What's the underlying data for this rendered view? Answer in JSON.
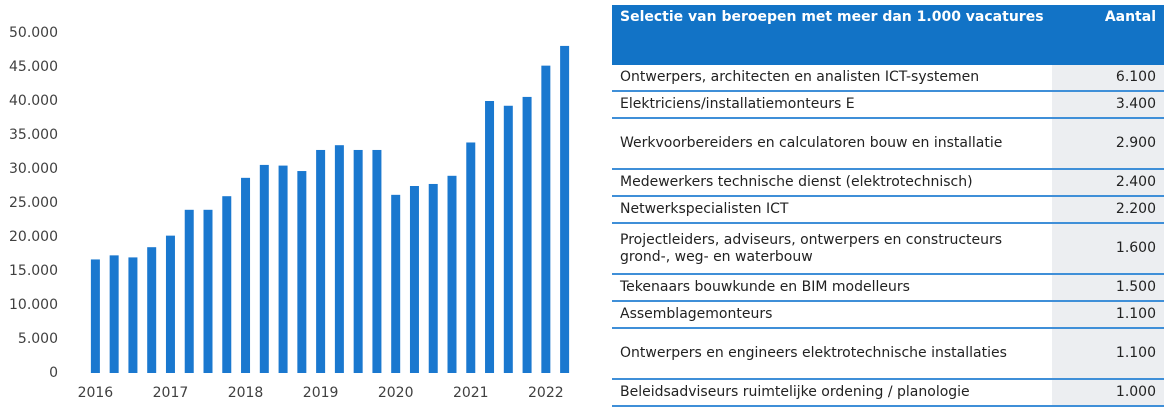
{
  "chart_data": {
    "type": "bar",
    "categories": [
      "2016",
      null,
      null,
      null,
      "2017",
      null,
      null,
      null,
      "2018",
      null,
      null,
      null,
      "2019",
      null,
      null,
      null,
      "2020",
      null,
      null,
      null,
      "2021",
      null,
      null,
      null,
      "2022",
      null
    ],
    "values": [
      16700,
      17300,
      17000,
      18500,
      20200,
      24000,
      24000,
      26000,
      28700,
      30600,
      30500,
      29700,
      32800,
      33500,
      32800,
      32800,
      26200,
      27500,
      27800,
      29000,
      33900,
      40000,
      39300,
      40600,
      45200,
      48100
    ],
    "color": "#1a78cf",
    "ylim": [
      0,
      50000
    ],
    "yticks": [
      0,
      {
        "value": 5000,
        "label": "5.000"
      },
      {
        "value": 10000,
        "label": "10.000"
      },
      {
        "value": 15000,
        "label": "15.000"
      },
      {
        "value": 20000,
        "label": "20.000"
      },
      {
        "value": 25000,
        "label": "25.000"
      },
      {
        "value": 30000,
        "label": "30.000"
      },
      {
        "value": 35000,
        "label": "35.000"
      },
      {
        "value": 40000,
        "label": "40.000"
      },
      {
        "value": 45000,
        "label": "45.000"
      },
      {
        "value": 50000,
        "label": "50.000"
      }
    ]
  },
  "table": {
    "header": [
      "Selectie van beroepen met meer dan 1.000 vacatures",
      "Aantal"
    ],
    "rows": [
      [
        "Ontwerpers, architecten en analisten ICT-systemen",
        "6.100"
      ],
      [
        "Elektriciens/installatiemonteurs E",
        "3.400"
      ],
      [
        "Werkvoorbereiders en calculatoren bouw en installatie",
        "2.900"
      ],
      [
        "Medewerkers technische dienst (elektrotechnisch)",
        "2.400"
      ],
      [
        "Netwerkspecialisten ICT",
        "2.200"
      ],
      [
        "Projectleiders, adviseurs, ontwerpers en constructeurs grond-, weg- en waterbouw",
        "1.600"
      ],
      [
        "Tekenaars bouwkunde en BIM modelleurs",
        "1.500"
      ],
      [
        "Assemblagemonteurs",
        "1.100"
      ],
      [
        "Ontwerpers en engineers elektrotechnische installaties",
        "1.100"
      ],
      [
        "Beleidsadviseurs ruimtelijke ordening / planologie",
        "1.000"
      ]
    ]
  }
}
